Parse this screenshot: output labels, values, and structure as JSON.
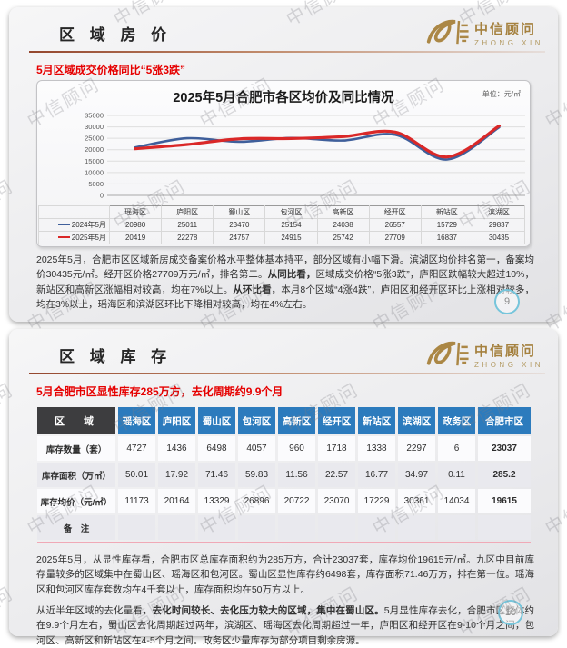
{
  "watermark": {
    "text": "中信顾问"
  },
  "brand": {
    "name_cn": "中信顾问",
    "name_en": "ZHONG XIN",
    "gold": "#a5813f"
  },
  "chart_data": {
    "type": "line",
    "title": "2025年5月合肥市各区均价及同比情况",
    "unit_label": "单位：元/㎡",
    "categories": [
      "瑶海区",
      "庐阳区",
      "蜀山区",
      "包河区",
      "高新区",
      "经开区",
      "新站区",
      "滨湖区"
    ],
    "series": [
      {
        "name": "2024年5月",
        "color": "#3f5f9b",
        "values": [
          20980,
          25011,
          23470,
          25154,
          24038,
          26557,
          15729,
          29837
        ]
      },
      {
        "name": "2025年5月",
        "color": "#da2828",
        "values": [
          20419,
          22278,
          24757,
          24915,
          25742,
          27709,
          16837,
          30435
        ]
      }
    ],
    "ylim": [
      0,
      35000
    ],
    "yticks": [
      0,
      5000,
      10000,
      15000,
      20000,
      25000,
      30000,
      35000
    ],
    "grid": true,
    "legend_position": "table-left"
  },
  "slide1": {
    "title": "区 域 房 价",
    "subtitle": "5月区域成交价格同比“5涨3跌”",
    "page_number": "9",
    "paragraph": [
      {
        "t": "2025年5月，合肥市区区域新房成交备案价格水平整体基本持平，部分区域有小幅下滑。滨湖区均价排名第一，备案均价30435元/㎡。经开区价格27709万元/㎡，排名第二。",
        "b": false
      },
      {
        "t": "从同比看，",
        "b": true
      },
      {
        "t": "区域成交价格“5涨3跌”，庐阳区跌幅较大超过10%，新站区和高新区涨幅相对较高，均在7%以上。",
        "b": false
      },
      {
        "t": "从环比看，",
        "b": true
      },
      {
        "t": "本月8个区域“4涨4跌”，庐阳区和经开区环比上涨相对较多，均在3%以上，瑶海区和滨湖区环比下降相对较高，均在4%左右。",
        "b": false
      }
    ]
  },
  "slide2": {
    "title": "区 域 库 存",
    "subtitle": "5月合肥市区显性库存285万方，去化周期约9.9个月",
    "page_number": "10",
    "table": {
      "corner": "区　域",
      "columns": [
        "瑶海区",
        "庐阳区",
        "蜀山区",
        "包河区",
        "高新区",
        "经开区",
        "新站区",
        "滨湖区",
        "政务区",
        "合肥市区"
      ],
      "rows": [
        {
          "label": "库存数量（套）",
          "values": [
            "4727",
            "1436",
            "6498",
            "4057",
            "960",
            "1718",
            "1338",
            "2297",
            "6",
            "23037"
          ]
        },
        {
          "label": "库存面积（万㎡）",
          "values": [
            "50.01",
            "17.92",
            "71.46",
            "59.83",
            "11.56",
            "22.57",
            "16.77",
            "34.97",
            "0.11",
            "285.2"
          ]
        },
        {
          "label": "库存均价（元/㎡）",
          "values": [
            "11173",
            "20164",
            "13329",
            "26896",
            "20722",
            "23070",
            "17229",
            "30361",
            "14034",
            "19615"
          ]
        },
        {
          "label": "备　注",
          "values": [
            "",
            "",
            "",
            "",
            "",
            "",
            "",
            "",
            "",
            ""
          ]
        }
      ]
    },
    "paragraph1": [
      {
        "t": "2025年5月，从显性库存看，合肥市区总库存面积约为285万方，合计23037套，库存均价19615元/㎡。九区中目前库存量较多的区域集中在蜀山区、瑶海区和包河区。蜀山区显性库存约6498套，库存面积71.46万方，排在第一位。瑶海区和包河区库存套数均在4千套以上，库存面积均在50万方以上。",
        "b": false
      }
    ],
    "paragraph2": [
      {
        "t": "从近半年区域的去化量看，",
        "b": false
      },
      {
        "t": "去化时间较长、去化压力较大的区域，集中在蜀山区。",
        "b": true
      },
      {
        "t": "5月显性库存去化，合肥市区整体约在9.9个月左右，蜀山区去化周期超过两年，滨湖区、瑶海区去化周期超过一年，庐阳区和经开区在9-10个月之间，包河区、高新区和新站区在4-5个月之间。政务区少量库存为部分项目剩余房源。",
        "b": false
      }
    ]
  }
}
